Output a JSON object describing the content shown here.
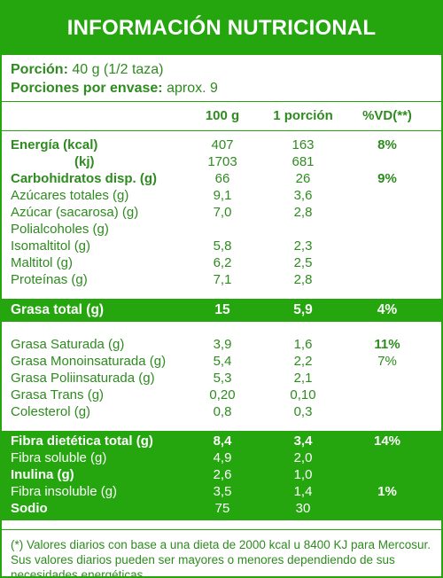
{
  "title": "INFORMACIÓN NUTRICIONAL",
  "portion": {
    "label": "Porción:",
    "value": " 40 g (1/2 taza)",
    "servings_label": "Porciones por envase:",
    "servings_value": " aprox. 9"
  },
  "columns": {
    "per100": "100 g",
    "per_portion": "1 porción",
    "vd": "%VD(**)"
  },
  "energy": {
    "kcal_label": "Energía (kcal)",
    "kcal_100": "407",
    "kcal_portion": "163",
    "kcal_vd": "8%",
    "kj_label": "(kj)",
    "kj_100": "1703",
    "kj_portion": "681"
  },
  "carbs": [
    {
      "label": "Carbohidratos disp. (g)",
      "v100": "66",
      "vp": "26",
      "vd": "9%"
    },
    {
      "label": "Azúcares totales (g)",
      "v100": "9,1",
      "vp": "3,6",
      "vd": ""
    },
    {
      "label": "Azúcar (sacarosa) (g)",
      "v100": "7,0",
      "vp": "2,8",
      "vd": ""
    },
    {
      "label": "Polialcoholes (g)",
      "v100": "",
      "vp": "",
      "vd": ""
    },
    {
      "label": "Isomaltitol (g)",
      "v100": "5,8",
      "vp": "2,3",
      "vd": ""
    },
    {
      "label": "Maltitol (g)",
      "v100": "6,2",
      "vp": "2,5",
      "vd": ""
    },
    {
      "label": "Proteínas (g)",
      "v100": "7,1",
      "vp": "2,8",
      "vd": ""
    }
  ],
  "fat_total": {
    "label": "Grasa total (g)",
    "v100": "15",
    "vp": "5,9",
    "vd": "4%"
  },
  "fats": [
    {
      "label": "Grasa Saturada (g)",
      "v100": "3,9",
      "vp": "1,6",
      "vd": "11%"
    },
    {
      "label": "Grasa Monoinsaturada (g)",
      "v100": "5,4",
      "vp": "2,2",
      "vd": "7%"
    },
    {
      "label": "Grasa Poliinsaturada (g)",
      "v100": "5,3",
      "vp": "2,1",
      "vd": ""
    },
    {
      "label": "Grasa Trans  (g)",
      "v100": "0,20",
      "vp": "0,10",
      "vd": ""
    },
    {
      "label": "Colesterol (g)",
      "v100": "0,8",
      "vp": "0,3",
      "vd": ""
    }
  ],
  "fiber": [
    {
      "label": "Fibra dietética total (g)",
      "v100": "8,4",
      "vp": "3,4",
      "vd": "14%"
    },
    {
      "label": "Fibra soluble (g)",
      "v100": "4,9",
      "vp": "2,0",
      "vd": ""
    },
    {
      "label": "Inulina (g)",
      "v100": "2,6",
      "vp": "1,0",
      "vd": ""
    },
    {
      "label": "Fibra insoluble (g)",
      "v100": "3,5",
      "vp": "1,4",
      "vd": "1%"
    },
    {
      "label": "Sodio",
      "v100": "75",
      "vp": "30",
      "vd": ""
    }
  ],
  "footnote": "(*) Valores diarios con base a una dieta de 2000 kcal u 8400 KJ para Mercosur. Sus valores diarios pueden ser mayores o menores dependiendo de sus necesidades energéticas.",
  "colors": {
    "accent": "#25a60f",
    "text": "#2e8b1f"
  }
}
